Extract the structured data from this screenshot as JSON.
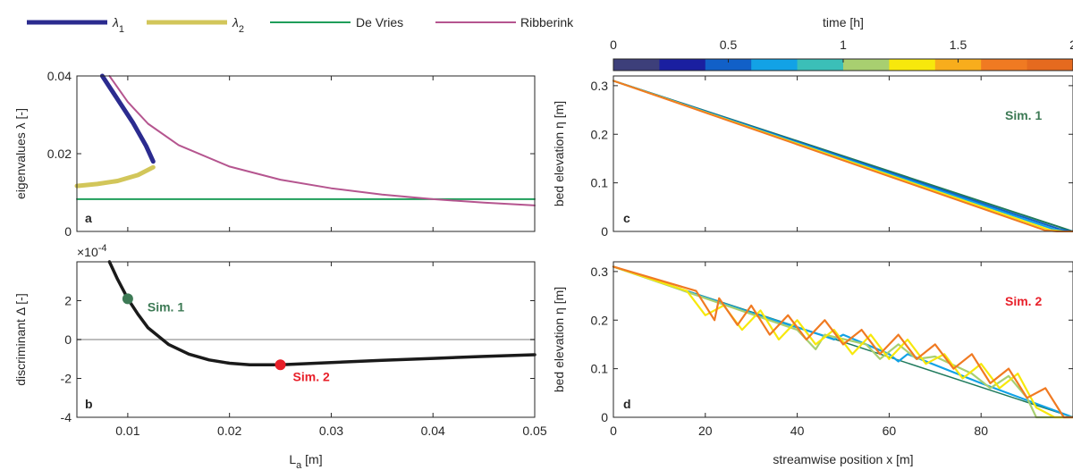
{
  "legend": [
    {
      "label": "λ",
      "sub": "1",
      "color": "#2b2b8f"
    },
    {
      "label": "λ",
      "sub": "2",
      "color": "#d2c65a"
    },
    {
      "label": "De Vries",
      "color": "#1f9e5a"
    },
    {
      "label": "Ribberink",
      "color": "#b5558f"
    }
  ],
  "colorbar": {
    "label": "time [h]",
    "ticks": [
      "0",
      "0.5",
      "1",
      "1.5",
      "2"
    ],
    "colors": [
      "#3d3f7a",
      "#1a1fa0",
      "#1160c8",
      "#12a2e6",
      "#3bbfb8",
      "#a8cf70",
      "#f7e80c",
      "#f8ad1c",
      "#f07a22",
      "#e56a1f"
    ]
  },
  "chart_data": [
    {
      "panel": "a",
      "type": "line",
      "xlabel": "",
      "ylabel": "eigenvalues λ [-]",
      "xlim": [
        0.005,
        0.05
      ],
      "ylim": [
        0,
        0.04
      ],
      "yticks": [
        "0",
        "0.02",
        "0.04"
      ],
      "series": [
        {
          "name": "λ1",
          "color": "#2b2b8f",
          "x": [
            0.0075,
            0.009,
            0.0105,
            0.0118,
            0.0125
          ],
          "y": [
            0.04,
            0.034,
            0.028,
            0.022,
            0.018
          ]
        },
        {
          "name": "λ2",
          "color": "#d2c65a",
          "x": [
            0.005,
            0.007,
            0.009,
            0.011,
            0.0125
          ],
          "y": [
            0.0117,
            0.0122,
            0.013,
            0.0145,
            0.0165
          ]
        },
        {
          "name": "De Vries",
          "color": "#1f9e5a",
          "x": [
            0.005,
            0.05
          ],
          "y": [
            0.0083,
            0.0083
          ]
        },
        {
          "name": "Ribberink",
          "color": "#b5558f",
          "x": [
            0.0082,
            0.01,
            0.012,
            0.015,
            0.02,
            0.025,
            0.03,
            0.035,
            0.04,
            0.045,
            0.05
          ],
          "y": [
            0.04,
            0.0333,
            0.0277,
            0.0222,
            0.0167,
            0.0133,
            0.0111,
            0.0095,
            0.0083,
            0.0074,
            0.0067
          ]
        }
      ]
    },
    {
      "panel": "b",
      "type": "line",
      "xlabel": "L",
      "xlabel_sub": "a",
      "xlabel_unit": "[m]",
      "ylabel": "discriminant Δ [-]",
      "exponent": "×10",
      "exponent_power": "-4",
      "xlim": [
        0.005,
        0.05
      ],
      "ylim": [
        -4,
        4
      ],
      "xticks": [
        "0.01",
        "0.02",
        "0.03",
        "0.04",
        "0.05"
      ],
      "yticks": [
        "-4",
        "-2",
        "0",
        "2"
      ],
      "series": [
        {
          "name": "Δ",
          "color": "#1a1a1a",
          "x": [
            0.0082,
            0.009,
            0.01,
            0.011,
            0.012,
            0.014,
            0.016,
            0.018,
            0.02,
            0.022,
            0.025,
            0.03,
            0.035,
            0.04,
            0.045,
            0.05
          ],
          "y": [
            4.0,
            3.1,
            2.1,
            1.3,
            0.6,
            -0.25,
            -0.75,
            -1.05,
            -1.22,
            -1.3,
            -1.3,
            -1.18,
            -1.07,
            -0.97,
            -0.87,
            -0.78
          ]
        }
      ],
      "points": [
        {
          "label": "Sim. 1",
          "x": 0.01,
          "y": 2.1,
          "color": "#3d7a55"
        },
        {
          "label": "Sim. 2",
          "x": 0.025,
          "y": -1.3,
          "color": "#e8202a"
        }
      ]
    },
    {
      "panel": "c",
      "type": "line",
      "xlabel": "",
      "ylabel": "bed elevation η [m]",
      "xlim": [
        0,
        100
      ],
      "ylim": [
        0,
        0.32
      ],
      "yticks": [
        "0",
        "0.1",
        "0.2",
        "0.3"
      ],
      "annotation": "Sim. 1",
      "annotation_color": "#3d7a55",
      "series": [
        {
          "name": "t=0",
          "color": "#1f7a5c",
          "x": [
            0,
            100
          ],
          "y": [
            0.31,
            0.0
          ]
        },
        {
          "name": "t=0.5",
          "color": "#1160c8",
          "x": [
            0,
            97,
            99,
            100
          ],
          "y": [
            0.31,
            0.005,
            0.001,
            0.0
          ]
        },
        {
          "name": "t=1",
          "color": "#12a2e6",
          "x": [
            0,
            96,
            98.5,
            100
          ],
          "y": [
            0.31,
            0.004,
            0.0,
            0.0
          ]
        },
        {
          "name": "t=1.5",
          "color": "#f7e80c",
          "x": [
            0,
            95,
            98,
            100
          ],
          "y": [
            0.31,
            0.003,
            0.0,
            0.0
          ]
        },
        {
          "name": "t=2",
          "color": "#f07a22",
          "x": [
            0,
            94,
            96.5,
            100
          ],
          "y": [
            0.31,
            0.002,
            0.0,
            0.0
          ]
        }
      ]
    },
    {
      "panel": "d",
      "type": "line",
      "xlabel": "streamwise position x [m]",
      "ylabel": "bed elevation η [m]",
      "xlim": [
        0,
        100
      ],
      "ylim": [
        0,
        0.32
      ],
      "xticks": [
        "0",
        "20",
        "40",
        "60",
        "80"
      ],
      "yticks": [
        "0",
        "0.1",
        "0.2",
        "0.3"
      ],
      "annotation": "Sim. 2",
      "annotation_color": "#e8202a",
      "series": [
        {
          "name": "t=0.5",
          "color": "#12a2e6",
          "x": [
            0,
            30,
            45,
            48,
            50,
            60,
            62,
            64,
            80,
            100
          ],
          "y": [
            0.31,
            0.215,
            0.17,
            0.16,
            0.17,
            0.13,
            0.115,
            0.13,
            0.07,
            0.0
          ]
        },
        {
          "name": "t=1",
          "color": "#a8cf70",
          "x": [
            0,
            40,
            44,
            46,
            55,
            58,
            62,
            66,
            70,
            78,
            82,
            86,
            90,
            92,
            100
          ],
          "y": [
            0.31,
            0.18,
            0.14,
            0.17,
            0.15,
            0.12,
            0.15,
            0.12,
            0.125,
            0.09,
            0.06,
            0.085,
            0.04,
            0.0,
            0.0
          ]
        },
        {
          "name": "t=1.5",
          "color": "#f7e80c",
          "x": [
            0,
            16,
            20,
            24,
            28,
            32,
            36,
            40,
            44,
            48,
            52,
            56,
            60,
            64,
            68,
            72,
            76,
            80,
            84,
            88,
            92,
            96,
            100
          ],
          "y": [
            0.31,
            0.26,
            0.21,
            0.23,
            0.18,
            0.22,
            0.16,
            0.2,
            0.15,
            0.18,
            0.13,
            0.17,
            0.12,
            0.16,
            0.11,
            0.13,
            0.08,
            0.11,
            0.06,
            0.09,
            0.02,
            0.0,
            0.0
          ]
        },
        {
          "name": "t=2",
          "color": "#f07a22",
          "x": [
            0,
            18,
            22,
            23,
            27,
            30,
            34,
            38,
            42,
            46,
            50,
            54,
            58,
            62,
            66,
            70,
            74,
            78,
            82,
            86,
            90,
            94,
            98,
            100
          ],
          "y": [
            0.31,
            0.26,
            0.2,
            0.245,
            0.19,
            0.23,
            0.17,
            0.21,
            0.16,
            0.2,
            0.15,
            0.18,
            0.13,
            0.17,
            0.12,
            0.15,
            0.1,
            0.13,
            0.07,
            0.1,
            0.04,
            0.06,
            0.0,
            0.0
          ]
        }
      ]
    }
  ]
}
